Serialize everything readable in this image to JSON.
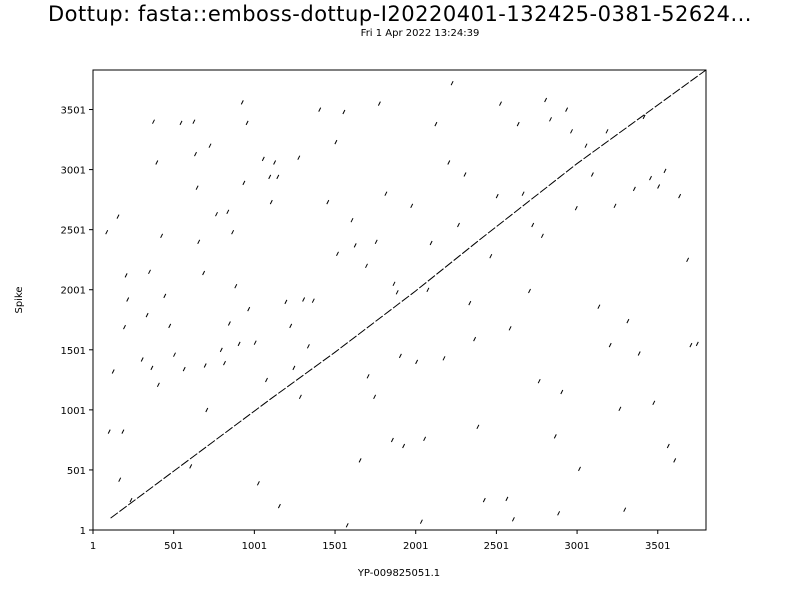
{
  "chart_data": {
    "type": "scatter",
    "title": "Dottup: fasta::emboss-dottup-I20220401-132425-0381-52624...",
    "subtitle": "Fri  1 Apr 2022 13:24:39",
    "xlabel": "YP-009825051.1",
    "ylabel": "Spike",
    "xlim": [
      1,
      3800
    ],
    "ylim": [
      1,
      3830
    ],
    "x_ticks": [
      1,
      501,
      1001,
      1501,
      2001,
      2501,
      3001,
      3501
    ],
    "y_ticks": [
      1,
      501,
      1001,
      1501,
      2001,
      2501,
      3001,
      3501
    ],
    "grid": false,
    "diagonal": [
      [
        110,
        100
      ],
      [
        400,
        390
      ],
      [
        1100,
        1090
      ],
      [
        1500,
        1480
      ],
      [
        2000,
        1990
      ],
      [
        2400,
        2420
      ],
      [
        3000,
        3050
      ],
      [
        3800,
        3830
      ]
    ],
    "points": [
      [
        80,
        2480
      ],
      [
        95,
        820
      ],
      [
        120,
        1320
      ],
      [
        150,
        2610
      ],
      [
        160,
        420
      ],
      [
        180,
        820
      ],
      [
        190,
        1690
      ],
      [
        200,
        2120
      ],
      [
        210,
        1920
      ],
      [
        230,
        250
      ],
      [
        300,
        1420
      ],
      [
        330,
        1790
      ],
      [
        345,
        2150
      ],
      [
        360,
        1350
      ],
      [
        370,
        3400
      ],
      [
        390,
        3060
      ],
      [
        400,
        1210
      ],
      [
        420,
        2450
      ],
      [
        440,
        1950
      ],
      [
        470,
        1700
      ],
      [
        500,
        1460
      ],
      [
        540,
        3390
      ],
      [
        560,
        1340
      ],
      [
        600,
        530
      ],
      [
        620,
        3400
      ],
      [
        630,
        3130
      ],
      [
        640,
        2850
      ],
      [
        650,
        2400
      ],
      [
        680,
        2140
      ],
      [
        690,
        1370
      ],
      [
        700,
        1000
      ],
      [
        720,
        3200
      ],
      [
        760,
        2630
      ],
      [
        790,
        1500
      ],
      [
        810,
        1390
      ],
      [
        830,
        2650
      ],
      [
        840,
        1720
      ],
      [
        860,
        2480
      ],
      [
        880,
        2030
      ],
      [
        900,
        1550
      ],
      [
        920,
        3560
      ],
      [
        930,
        2890
      ],
      [
        950,
        3390
      ],
      [
        960,
        1840
      ],
      [
        1000,
        1560
      ],
      [
        1020,
        390
      ],
      [
        1050,
        3090
      ],
      [
        1070,
        1250
      ],
      [
        1090,
        2940
      ],
      [
        1100,
        2730
      ],
      [
        1120,
        3060
      ],
      [
        1140,
        2940
      ],
      [
        1150,
        200
      ],
      [
        1190,
        1900
      ],
      [
        1220,
        1700
      ],
      [
        1240,
        1350
      ],
      [
        1270,
        3100
      ],
      [
        1280,
        1110
      ],
      [
        1300,
        1920
      ],
      [
        1330,
        1530
      ],
      [
        1360,
        1910
      ],
      [
        1400,
        3500
      ],
      [
        1450,
        2730
      ],
      [
        1500,
        3230
      ],
      [
        1510,
        2300
      ],
      [
        1550,
        3480
      ],
      [
        1570,
        40
      ],
      [
        1600,
        2580
      ],
      [
        1620,
        2370
      ],
      [
        1650,
        580
      ],
      [
        1690,
        2200
      ],
      [
        1700,
        1280
      ],
      [
        1740,
        1110
      ],
      [
        1750,
        2400
      ],
      [
        1770,
        3550
      ],
      [
        1810,
        2800
      ],
      [
        1850,
        750
      ],
      [
        1860,
        2050
      ],
      [
        1880,
        1980
      ],
      [
        1900,
        1450
      ],
      [
        1920,
        700
      ],
      [
        1970,
        2700
      ],
      [
        2000,
        1400
      ],
      [
        2030,
        70
      ],
      [
        2050,
        760
      ],
      [
        2070,
        2000
      ],
      [
        2090,
        2390
      ],
      [
        2120,
        3380
      ],
      [
        2170,
        1430
      ],
      [
        2200,
        3060
      ],
      [
        2220,
        3720
      ],
      [
        2260,
        2540
      ],
      [
        2300,
        2960
      ],
      [
        2330,
        1890
      ],
      [
        2360,
        1590
      ],
      [
        2380,
        860
      ],
      [
        2420,
        250
      ],
      [
        2460,
        2280
      ],
      [
        2500,
        2780
      ],
      [
        2520,
        3550
      ],
      [
        2560,
        260
      ],
      [
        2580,
        1680
      ],
      [
        2600,
        90
      ],
      [
        2630,
        3380
      ],
      [
        2660,
        2800
      ],
      [
        2700,
        1990
      ],
      [
        2720,
        2540
      ],
      [
        2760,
        1240
      ],
      [
        2780,
        2450
      ],
      [
        2800,
        3580
      ],
      [
        2830,
        3420
      ],
      [
        2860,
        780
      ],
      [
        2880,
        140
      ],
      [
        2900,
        1150
      ],
      [
        2930,
        3500
      ],
      [
        2960,
        3320
      ],
      [
        2990,
        2680
      ],
      [
        3010,
        510
      ],
      [
        3050,
        3200
      ],
      [
        3090,
        2960
      ],
      [
        3130,
        1860
      ],
      [
        3180,
        3320
      ],
      [
        3200,
        1540
      ],
      [
        3230,
        2700
      ],
      [
        3260,
        1010
      ],
      [
        3290,
        170
      ],
      [
        3310,
        1740
      ],
      [
        3350,
        2840
      ],
      [
        3380,
        1470
      ],
      [
        3410,
        3440
      ],
      [
        3450,
        2930
      ],
      [
        3470,
        1060
      ],
      [
        3500,
        2860
      ],
      [
        3540,
        2990
      ],
      [
        3600,
        580
      ],
      [
        3630,
        2780
      ],
      [
        3680,
        2250
      ],
      [
        3700,
        1540
      ],
      [
        3740,
        1550
      ],
      [
        3560,
        700
      ]
    ]
  }
}
